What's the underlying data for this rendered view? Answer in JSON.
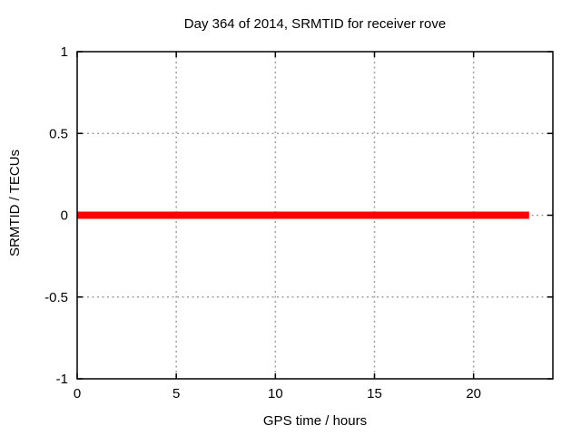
{
  "window": {
    "background": "#ffffff"
  },
  "chart_data": {
    "type": "line",
    "title": "Day 364 of 2014, SRMTID for receiver rove",
    "xlabel": "GPS time / hours",
    "ylabel": "SRMTID / TECUs",
    "xlim": [
      0,
      24
    ],
    "ylim": [
      -1,
      1
    ],
    "xticks": {
      "values": [
        0,
        5,
        10,
        15,
        20
      ],
      "labels": [
        "0",
        "5",
        "10",
        "15",
        "20"
      ]
    },
    "yticks": {
      "values": [
        -1,
        -0.5,
        0,
        0.5,
        1
      ],
      "labels": [
        "-1",
        "-0.5",
        "0",
        "0.5",
        "1"
      ]
    },
    "grid": true,
    "legend": "none",
    "axis_color": "#000000",
    "grid_color": "#a0a0a0",
    "text_color": "#000000",
    "series": [
      {
        "name": "SRMTID",
        "color": "#ff0000",
        "line_width": 8,
        "points": [
          [
            0,
            0
          ],
          [
            22.8,
            0
          ]
        ]
      }
    ]
  }
}
